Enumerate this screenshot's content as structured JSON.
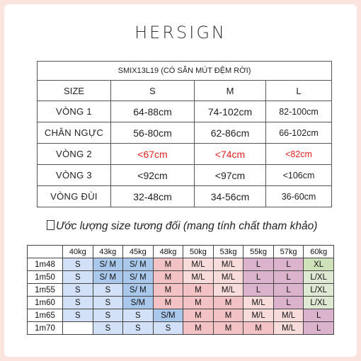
{
  "brand": "HERSIGN",
  "size_table": {
    "product": "SMIX13L19 (CÓ SẴN MÚT ĐỆM RỜI)",
    "columns": [
      "SIZE",
      "S",
      "M",
      "L"
    ],
    "rows": [
      {
        "label": "VÒNG 1",
        "s": "64-88cm",
        "m": "74-102cm",
        "l": "82-100cm"
      },
      {
        "label": "CHÂN NGỰC",
        "s": "56-80cm",
        "m": "62-86cm",
        "l": "66-102cm"
      },
      {
        "label": "VÒNG 2",
        "s": "<67cm",
        "m": "<74cm",
        "l": "<82cm"
      },
      {
        "label": "VÒNG 3",
        "s": "<92cm",
        "m": "<97cm",
        "l": "<106cm"
      },
      {
        "label": "VÒNG ĐÙI",
        "s": "32-48cm",
        "m": "34-56cm",
        "l": "36-60cm"
      }
    ],
    "highlight_color": "#e1201f"
  },
  "note": "Ước lượng size tương đối (mang tính chất tham khảo)",
  "size_grid": {
    "weights": [
      "40kg",
      "43kg",
      "45kg",
      "48kg",
      "50kg",
      "53kg",
      "55kg",
      "57kg",
      "60kg"
    ],
    "rows": [
      {
        "height": "1m48",
        "cells": [
          "S",
          "S/ M",
          "S/ M",
          "M",
          "M/L",
          "M/L",
          "L",
          "L",
          "XL"
        ]
      },
      {
        "height": "1m50",
        "cells": [
          "S",
          "S/ M",
          "S/ M",
          "M",
          "M/L",
          "M/L",
          "L",
          "L",
          "L/XL"
        ]
      },
      {
        "height": "1m55",
        "cells": [
          "S",
          "S",
          "S/ M",
          "M",
          "M",
          "M/L",
          "L",
          "L",
          "L/XL"
        ]
      },
      {
        "height": "1m60",
        "cells": [
          "S",
          "S",
          "S/M",
          "M",
          "M",
          "M",
          "M/L",
          "L",
          "L/XL"
        ]
      },
      {
        "height": "1m65",
        "cells": [
          "S",
          "S",
          "S",
          "S/M",
          "M",
          "M",
          "M/L",
          "M/L",
          "L"
        ]
      },
      {
        "height": "1m70",
        "cells": [
          "",
          "S",
          "S",
          "S",
          "M",
          "M",
          "M",
          "M/L",
          "L"
        ]
      }
    ]
  }
}
